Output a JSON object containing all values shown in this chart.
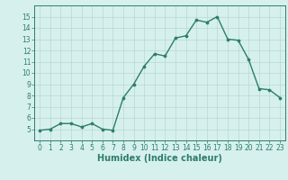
{
  "title": "",
  "xlabel": "Humidex (Indice chaleur)",
  "ylabel": "",
  "x_values": [
    0,
    1,
    2,
    3,
    4,
    5,
    6,
    7,
    8,
    9,
    10,
    11,
    12,
    13,
    14,
    15,
    16,
    17,
    18,
    19,
    20,
    21,
    22,
    23
  ],
  "y_values": [
    4.9,
    5.0,
    5.5,
    5.5,
    5.2,
    5.5,
    5.0,
    4.9,
    7.8,
    9.0,
    10.6,
    11.7,
    11.5,
    13.1,
    13.3,
    14.7,
    14.5,
    15.0,
    13.0,
    12.9,
    11.2,
    8.6,
    8.5,
    7.8
  ],
  "line_color": "#2d7d6b",
  "marker_color": "#2d7d6b",
  "bg_color": "#d6f0ee",
  "grid_color": "#b8d8d2",
  "axis_color": "#2d7d6b",
  "tick_color": "#2d7d6b",
  "ylim": [
    4,
    16
  ],
  "xlim": [
    -0.5,
    23.5
  ],
  "yticks": [
    5,
    6,
    7,
    8,
    9,
    10,
    11,
    12,
    13,
    14,
    15
  ],
  "xticks": [
    0,
    1,
    2,
    3,
    4,
    5,
    6,
    7,
    8,
    9,
    10,
    11,
    12,
    13,
    14,
    15,
    16,
    17,
    18,
    19,
    20,
    21,
    22,
    23
  ],
  "tick_fontsize": 5.5,
  "xlabel_fontsize": 7.0,
  "linewidth": 1.0,
  "markersize": 2.2
}
